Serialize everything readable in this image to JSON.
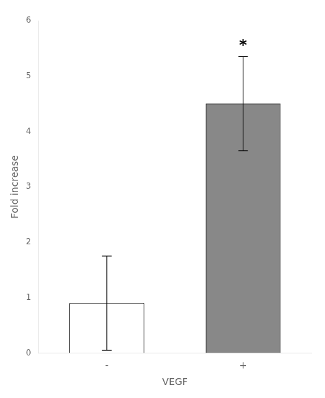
{
  "chart_data": {
    "type": "bar",
    "categories": [
      "-",
      "+"
    ],
    "values": [
      0.9,
      4.5
    ],
    "errors": [
      0.85,
      0.85
    ],
    "colors": [
      "#ffffff",
      "#888888"
    ],
    "xlabel": "VEGF",
    "ylabel": "Fold increase",
    "ylim": [
      0,
      6
    ],
    "yticks": [
      0,
      1,
      2,
      3,
      4,
      5,
      6
    ],
    "annotations": [
      {
        "text": "*",
        "category": "+"
      }
    ],
    "grid": false
  }
}
